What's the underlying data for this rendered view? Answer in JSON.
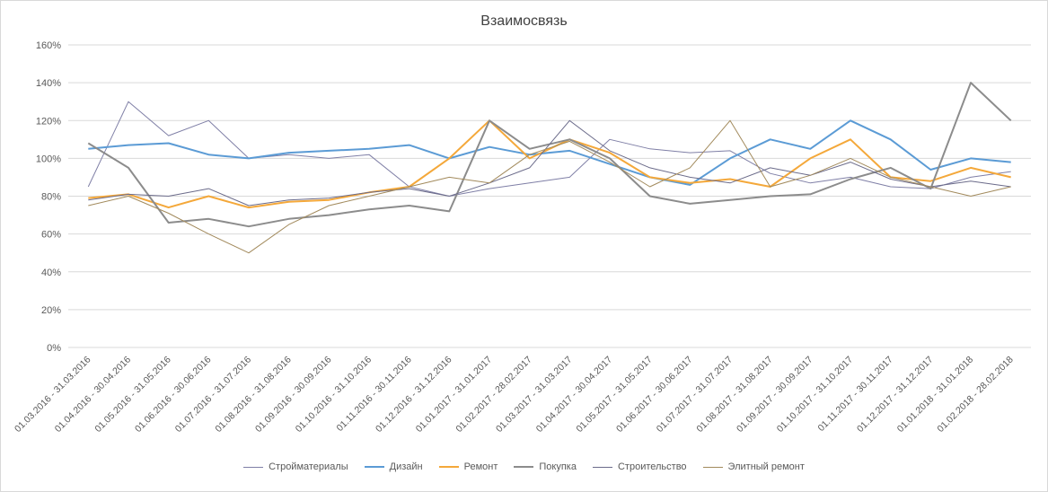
{
  "chart_data": {
    "type": "line",
    "title": "Взаимосвязь",
    "xlabel": "",
    "ylabel": "",
    "ylim": [
      0,
      1.6
    ],
    "yticks": [
      "0%",
      "20%",
      "40%",
      "60%",
      "80%",
      "100%",
      "120%",
      "140%",
      "160%"
    ],
    "grid": true,
    "legend_position": "bottom",
    "categories": [
      "01.03.2016 - 31.03.2016",
      "01.04.2016 - 30.04.2016",
      "01.05.2016 - 31.05.2016",
      "01.06.2016 - 30.06.2016",
      "01.07.2016 - 31.07.2016",
      "01.08.2016 - 31.08.2016",
      "01.09.2016 - 30.09.2016",
      "01.10.2016 - 31.10.2016",
      "01.11.2016 - 30.11.2016",
      "01.12.2016 - 31.12.2016",
      "01.01.2017 - 31.01.2017",
      "01.02.2017 - 28.02.2017",
      "01.03.2017 - 31.03.2017",
      "01.04.2017 - 30.04.2017",
      "01.05.2017 - 31.05.2017",
      "01.06.2017 - 30.06.2017",
      "01.07.2017 - 31.07.2017",
      "01.08.2017 - 31.08.2017",
      "01.09.2017 - 30.09.2017",
      "01.10.2017 - 31.10.2017",
      "01.11.2017 - 30.11.2017",
      "01.12.2017 - 31.12.2017",
      "01.01.2018 - 31.01.2018",
      "01.02.2018 - 28.02.2018"
    ],
    "series": [
      {
        "name": "Стройматериалы",
        "color": "#7f7fa6",
        "values": [
          0.85,
          1.3,
          1.12,
          1.2,
          1.0,
          1.02,
          1.0,
          1.02,
          0.85,
          0.8,
          0.84,
          0.87,
          0.9,
          1.1,
          1.05,
          1.03,
          1.04,
          0.92,
          0.87,
          0.9,
          0.85,
          0.84,
          0.9,
          0.93
        ]
      },
      {
        "name": "Дизайн",
        "color": "#5b9bd5",
        "values": [
          1.05,
          1.07,
          1.08,
          1.02,
          1.0,
          1.03,
          1.04,
          1.05,
          1.07,
          1.0,
          1.06,
          1.02,
          1.04,
          0.97,
          0.9,
          0.86,
          1.0,
          1.1,
          1.05,
          1.2,
          1.1,
          0.94,
          1.0,
          0.98
        ]
      },
      {
        "name": "Ремонт",
        "color": "#f4a83a",
        "values": [
          0.79,
          0.81,
          0.74,
          0.8,
          0.74,
          0.77,
          0.78,
          0.82,
          0.85,
          1.0,
          1.2,
          1.0,
          1.1,
          1.03,
          0.9,
          0.87,
          0.89,
          0.85,
          1.0,
          1.1,
          0.9,
          0.88,
          0.95,
          0.9
        ]
      },
      {
        "name": "Покупка",
        "color": "#8c8c8c",
        "values": [
          1.08,
          0.95,
          0.66,
          0.68,
          0.64,
          0.68,
          0.7,
          0.73,
          0.75,
          0.72,
          1.2,
          1.05,
          1.1,
          1.0,
          0.8,
          0.76,
          0.78,
          0.8,
          0.81,
          0.89,
          0.95,
          0.84,
          1.4,
          1.2
        ]
      },
      {
        "name": "Строительство",
        "color": "#6b6b8a",
        "values": [
          0.78,
          0.81,
          0.8,
          0.84,
          0.75,
          0.78,
          0.79,
          0.82,
          0.84,
          0.8,
          0.87,
          0.95,
          1.2,
          1.04,
          0.95,
          0.9,
          0.87,
          0.95,
          0.91,
          0.98,
          0.89,
          0.85,
          0.88,
          0.85
        ]
      },
      {
        "name": "Элитный ремонт",
        "color": "#a28a5c",
        "values": [
          0.75,
          0.8,
          0.71,
          0.6,
          0.5,
          0.65,
          0.75,
          0.8,
          0.85,
          0.9,
          0.87,
          1.02,
          1.09,
          0.98,
          0.85,
          0.95,
          1.2,
          0.85,
          0.91,
          1.0,
          0.9,
          0.85,
          0.8,
          0.85
        ]
      }
    ]
  }
}
